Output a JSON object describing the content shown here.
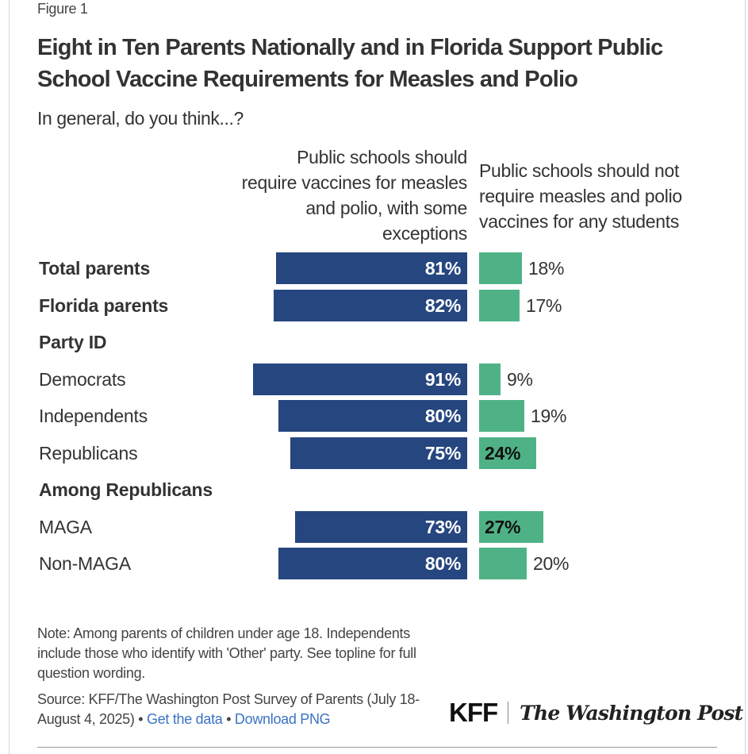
{
  "figure_label": "Figure 1",
  "title": "Eight in Ten Parents Nationally and in Florida Support Public School Vaccine Requirements for Measles and Polio",
  "subtitle": "In general, do you think...?",
  "columns": {
    "left": "Public schools should require vaccines for measles and polio, with some exceptions",
    "right": "Public schools should not require measles and polio vaccines for any students"
  },
  "colors": {
    "require": "#26467f",
    "not_require": "#4fb286"
  },
  "chart_data": {
    "type": "bar",
    "orientation": "horizontal",
    "title": "Eight in Ten Parents Nationally and in Florida Support Public School Vaccine Requirements for Measles and Polio",
    "subtitle": "In general, do you think...?",
    "xlabel": "",
    "ylabel": "",
    "categories": [
      "Total parents",
      "Florida parents",
      "Party ID",
      "Democrats",
      "Independents",
      "Republicans",
      "Among Republicans",
      "MAGA",
      "Non-MAGA"
    ],
    "category_styles": [
      "bold",
      "bold",
      "header",
      "normal",
      "normal",
      "normal",
      "header",
      "normal",
      "normal"
    ],
    "series": [
      {
        "name": "Public schools should require vaccines for measles and polio, with some exceptions",
        "values": [
          81,
          82,
          null,
          91,
          80,
          75,
          null,
          73,
          80
        ],
        "labels": [
          "81%",
          "82%",
          "",
          "91%",
          "80%",
          "75%",
          "",
          "73%",
          "80%"
        ]
      },
      {
        "name": "Public schools should not require measles and polio vaccines for any students",
        "values": [
          18,
          17,
          null,
          9,
          19,
          24,
          null,
          27,
          20
        ],
        "labels": [
          "18%",
          "17%",
          "",
          "9%",
          "19%",
          "24%",
          "",
          "27%",
          "20%"
        ]
      }
    ],
    "unit": "%",
    "grid": false,
    "legend": "column headers above bars"
  },
  "note": "Note: Among parents of children under age 18. Independents include those who identify with 'Other' party. See topline for full question wording.",
  "source": {
    "text": "Source: KFF/The Washington Post Survey of Parents (July 18-August 4, 2025)",
    "separator": "•",
    "get_data": "Get the data",
    "download_png": "Download PNG"
  },
  "logos": {
    "kff": "KFF",
    "wapo": "The Washington Post"
  }
}
